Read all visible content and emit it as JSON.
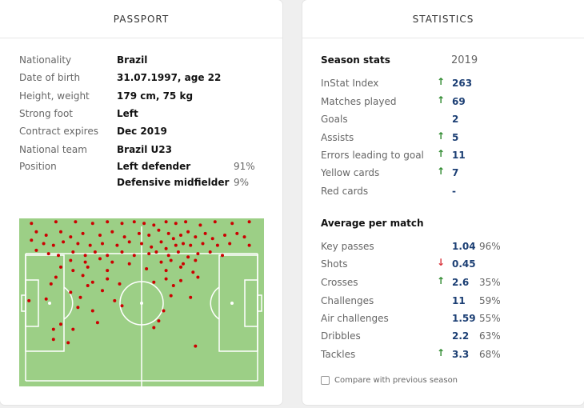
{
  "passport": {
    "title": "PASSPORT",
    "rows": [
      {
        "label": "Nationality",
        "value": "Brazil"
      },
      {
        "label": "Date of birth",
        "value": "31.07.1997, age 22"
      },
      {
        "label": "Height, weight",
        "value": "179 cm, 75 kg"
      },
      {
        "label": "Strong foot",
        "value": "Left"
      },
      {
        "label": "Contract expires",
        "value": "Dec 2019"
      },
      {
        "label": "National team",
        "value": "Brazil U23"
      }
    ],
    "position_label": "Position",
    "positions": [
      {
        "name": "Left defender",
        "pct": "91%"
      },
      {
        "name": "Defensive midfielder",
        "pct": "9%"
      }
    ]
  },
  "statistics": {
    "title": "STATISTICS",
    "season_label": "Season stats",
    "season_year": "2019",
    "season_rows": [
      {
        "label": "InStat Index",
        "trend": "up",
        "value": "263"
      },
      {
        "label": "Matches played",
        "trend": "up",
        "value": "69"
      },
      {
        "label": "Goals",
        "trend": "",
        "value": "2"
      },
      {
        "label": "Assists",
        "trend": "up",
        "value": "5"
      },
      {
        "label": "Errors leading to goal",
        "trend": "up",
        "value": "11"
      },
      {
        "label": "Yellow cards",
        "trend": "up",
        "value": "7"
      },
      {
        "label": "Red cards",
        "trend": "",
        "value": "-"
      }
    ],
    "avg_label": "Average per match",
    "avg_rows": [
      {
        "label": "Key passes",
        "trend": "",
        "value": "1.04",
        "pct": "96%"
      },
      {
        "label": "Shots",
        "trend": "down",
        "value": "0.45",
        "pct": ""
      },
      {
        "label": "Crosses",
        "trend": "up",
        "value": "2.6",
        "pct": "35%"
      },
      {
        "label": "Challenges",
        "trend": "",
        "value": "11",
        "pct": "59%"
      },
      {
        "label": "Air challenges",
        "trend": "",
        "value": "1.59",
        "pct": "55%"
      },
      {
        "label": "Dribbles",
        "trend": "",
        "value": "2.2",
        "pct": "63%"
      },
      {
        "label": "Tackles",
        "trend": "up",
        "value": "3.3",
        "pct": "68%"
      }
    ],
    "compare_label": "Compare with previous season",
    "compare_checked": false
  },
  "icons": {
    "up": "arrow-up-icon",
    "down": "arrow-down-icon"
  },
  "colors": {
    "pitch": "#9ccf86",
    "dot": "#cc0000",
    "value": "#1c3f74",
    "up": "#2f8a2f",
    "down": "#d9363e"
  },
  "heatmap_points": [
    [
      0.05,
      0.03
    ],
    [
      0.15,
      0.02
    ],
    [
      0.23,
      0.02
    ],
    [
      0.3,
      0.03
    ],
    [
      0.36,
      0.02
    ],
    [
      0.42,
      0.03
    ],
    [
      0.47,
      0.02
    ],
    [
      0.51,
      0.03
    ],
    [
      0.55,
      0.04
    ],
    [
      0.6,
      0.02
    ],
    [
      0.64,
      0.03
    ],
    [
      0.68,
      0.02
    ],
    [
      0.74,
      0.04
    ],
    [
      0.8,
      0.02
    ],
    [
      0.87,
      0.03
    ],
    [
      0.94,
      0.02
    ],
    [
      0.07,
      0.08
    ],
    [
      0.11,
      0.1
    ],
    [
      0.17,
      0.08
    ],
    [
      0.21,
      0.11
    ],
    [
      0.26,
      0.09
    ],
    [
      0.33,
      0.1
    ],
    [
      0.38,
      0.08
    ],
    [
      0.43,
      0.11
    ],
    [
      0.49,
      0.09
    ],
    [
      0.53,
      0.1
    ],
    [
      0.57,
      0.07
    ],
    [
      0.61,
      0.09
    ],
    [
      0.63,
      0.12
    ],
    [
      0.66,
      0.1
    ],
    [
      0.69,
      0.08
    ],
    [
      0.72,
      0.11
    ],
    [
      0.76,
      0.09
    ],
    [
      0.79,
      0.12
    ],
    [
      0.84,
      0.1
    ],
    [
      0.89,
      0.09
    ],
    [
      0.92,
      0.11
    ],
    [
      0.05,
      0.13
    ],
    [
      0.1,
      0.15
    ],
    [
      0.14,
      0.16
    ],
    [
      0.18,
      0.14
    ],
    [
      0.24,
      0.15
    ],
    [
      0.29,
      0.16
    ],
    [
      0.34,
      0.15
    ],
    [
      0.4,
      0.16
    ],
    [
      0.45,
      0.14
    ],
    [
      0.5,
      0.15
    ],
    [
      0.54,
      0.17
    ],
    [
      0.58,
      0.14
    ],
    [
      0.6,
      0.18
    ],
    [
      0.64,
      0.16
    ],
    [
      0.67,
      0.15
    ],
    [
      0.7,
      0.16
    ],
    [
      0.75,
      0.15
    ],
    [
      0.81,
      0.16
    ],
    [
      0.86,
      0.15
    ],
    [
      0.94,
      0.16
    ],
    [
      0.07,
      0.19
    ],
    [
      0.12,
      0.21
    ],
    [
      0.16,
      0.22
    ],
    [
      0.22,
      0.2
    ],
    [
      0.27,
      0.22
    ],
    [
      0.31,
      0.2
    ],
    [
      0.36,
      0.22
    ],
    [
      0.42,
      0.2
    ],
    [
      0.47,
      0.22
    ],
    [
      0.53,
      0.21
    ],
    [
      0.56,
      0.2
    ],
    [
      0.61,
      0.22
    ],
    [
      0.65,
      0.2
    ],
    [
      0.69,
      0.23
    ],
    [
      0.73,
      0.21
    ],
    [
      0.78,
      0.2
    ],
    [
      0.83,
      0.22
    ],
    [
      0.21,
      0.25
    ],
    [
      0.27,
      0.26
    ],
    [
      0.33,
      0.24
    ],
    [
      0.38,
      0.26
    ],
    [
      0.45,
      0.27
    ],
    [
      0.58,
      0.26
    ],
    [
      0.62,
      0.25
    ],
    [
      0.67,
      0.27
    ],
    [
      0.72,
      0.25
    ],
    [
      0.17,
      0.29
    ],
    [
      0.22,
      0.31
    ],
    [
      0.28,
      0.29
    ],
    [
      0.36,
      0.31
    ],
    [
      0.52,
      0.3
    ],
    [
      0.6,
      0.31
    ],
    [
      0.66,
      0.29
    ],
    [
      0.71,
      0.32
    ],
    [
      0.15,
      0.35
    ],
    [
      0.26,
      0.34
    ],
    [
      0.3,
      0.38
    ],
    [
      0.36,
      0.36
    ],
    [
      0.6,
      0.36
    ],
    [
      0.66,
      0.37
    ],
    [
      0.73,
      0.35
    ],
    [
      0.13,
      0.39
    ],
    [
      0.28,
      0.4
    ],
    [
      0.41,
      0.39
    ],
    [
      0.55,
      0.38
    ],
    [
      0.63,
      0.4
    ],
    [
      0.21,
      0.44
    ],
    [
      0.25,
      0.47
    ],
    [
      0.34,
      0.43
    ],
    [
      0.39,
      0.49
    ],
    [
      0.62,
      0.46
    ],
    [
      0.7,
      0.47
    ],
    [
      0.04,
      0.49
    ],
    [
      0.11,
      0.48
    ],
    [
      0.24,
      0.53
    ],
    [
      0.42,
      0.52
    ],
    [
      0.3,
      0.55
    ],
    [
      0.59,
      0.55
    ],
    [
      0.17,
      0.63
    ],
    [
      0.22,
      0.66
    ],
    [
      0.14,
      0.66
    ],
    [
      0.32,
      0.62
    ],
    [
      0.57,
      0.61
    ],
    [
      0.55,
      0.65
    ],
    [
      0.14,
      0.72
    ],
    [
      0.2,
      0.74
    ],
    [
      0.72,
      0.76
    ]
  ]
}
